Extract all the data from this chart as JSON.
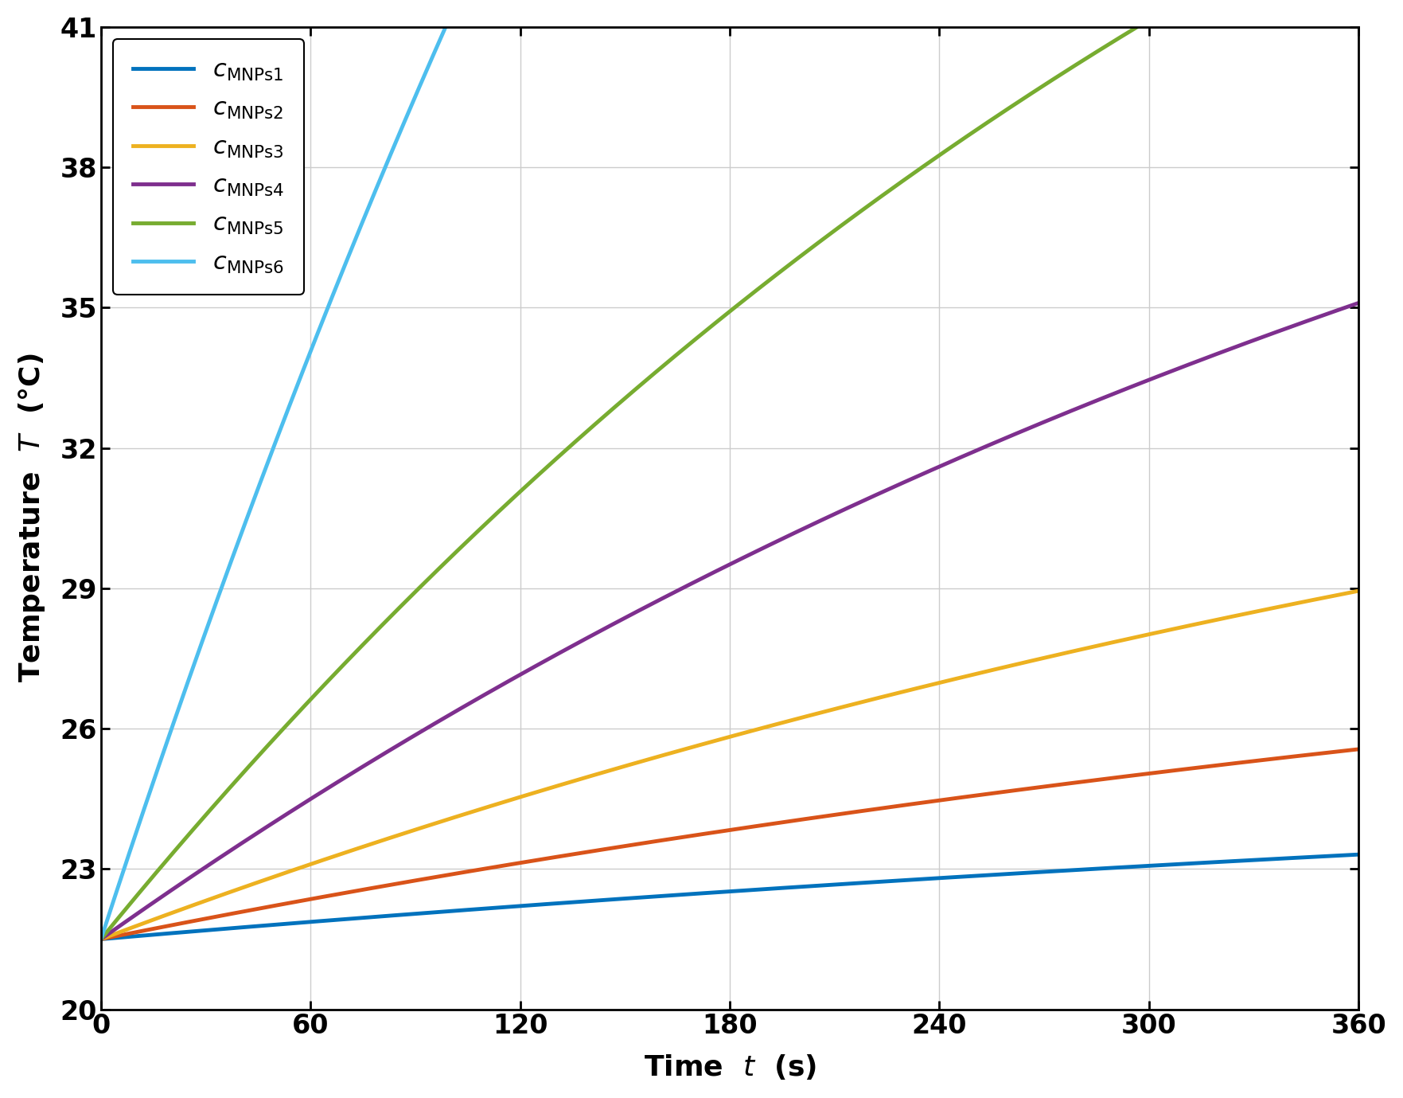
{
  "xlim": [
    0,
    360
  ],
  "ylim": [
    20,
    41
  ],
  "xticks": [
    0,
    60,
    120,
    180,
    240,
    300,
    360
  ],
  "yticks": [
    20,
    23,
    26,
    29,
    32,
    35,
    38,
    41
  ],
  "T0": 21.5,
  "curves": [
    {
      "label_sub": "MNPs",
      "label_num": "1",
      "color": "#0072BD",
      "T_inf": 26.0,
      "tau": 700
    },
    {
      "label_sub": "MNPs",
      "label_num": "2",
      "color": "#D95319",
      "T_inf": 30.5,
      "tau": 600
    },
    {
      "label_sub": "MNPs",
      "label_num": "3",
      "color": "#EDB120",
      "T_inf": 37.0,
      "tau": 550
    },
    {
      "label_sub": "MNPs",
      "label_num": "4",
      "color": "#7E2F8E",
      "T_inf": 48.0,
      "tau": 500
    },
    {
      "label_sub": "MNPs",
      "label_num": "5",
      "color": "#77AC30",
      "T_inf": 60.0,
      "tau": 420
    },
    {
      "label_sub": "MNPs",
      "label_num": "6",
      "color": "#4DBEEE",
      "T_inf": 95.0,
      "tau": 320
    }
  ],
  "line_width": 3.5,
  "legend_fontsize": 22,
  "axis_label_fontsize": 26,
  "tick_fontsize": 24,
  "grid_color": "#CCCCCC",
  "background_color": "#FFFFFF",
  "box_color": "#000000"
}
